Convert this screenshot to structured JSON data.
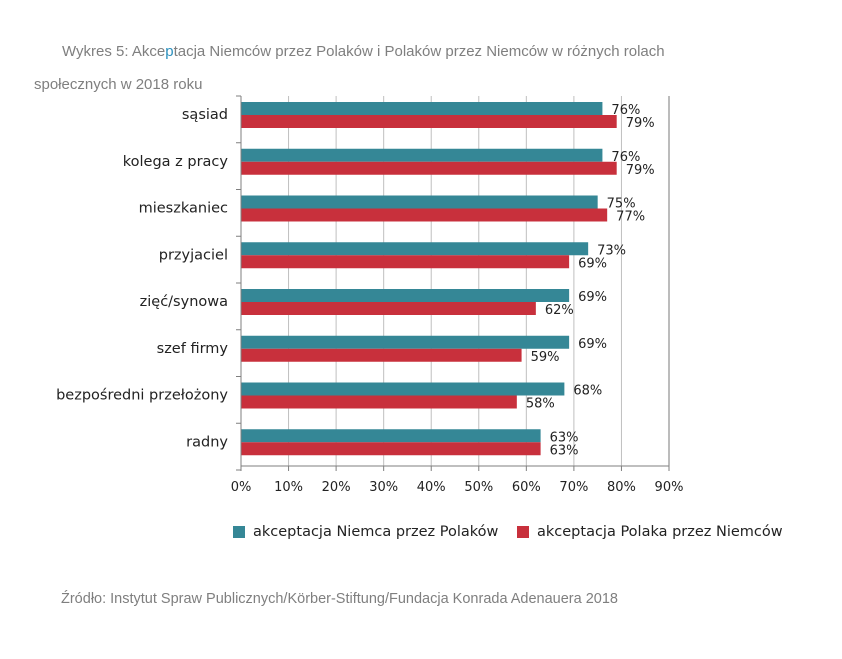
{
  "title": {
    "line1_pre": "Wykres 5: Akce",
    "line1_accent": "p",
    "line1_post": "tacja Niemców przez Polaków i Polaków przez Niemców w różnych rolach",
    "line2": "społecznych w 2018 roku"
  },
  "source": "Źródło: Instytut Spraw Publicznych/Körber-Stiftung/Fundacja Konrada Adenauera 2018",
  "colors": {
    "teal": "#358796",
    "red": "#c8303c",
    "axis": "#7f7f7f"
  },
  "chart_data": {
    "type": "bar",
    "orientation": "horizontal",
    "categories": [
      "sąsiad",
      "kolega z pracy",
      "mieszkaniec",
      "przyjaciel",
      "zięć/synowa",
      "szef firmy",
      "bezpośredni przełożony",
      "radny"
    ],
    "series": [
      {
        "name": "akceptacja Niemca przez Polaków",
        "color": "#358796",
        "values": [
          76,
          76,
          75,
          73,
          69,
          69,
          68,
          63
        ]
      },
      {
        "name": "akceptacja Polaka przez Niemców",
        "color": "#c8303c",
        "values": [
          79,
          79,
          77,
          69,
          62,
          59,
          58,
          63
        ]
      }
    ],
    "xlim": [
      0,
      90
    ],
    "xticks": [
      "0%",
      "10%",
      "20%",
      "30%",
      "40%",
      "50%",
      "60%",
      "70%",
      "80%",
      "90%"
    ],
    "value_suffix": "%",
    "grid": "vertical",
    "legend": "bottom",
    "data_labels": true
  }
}
